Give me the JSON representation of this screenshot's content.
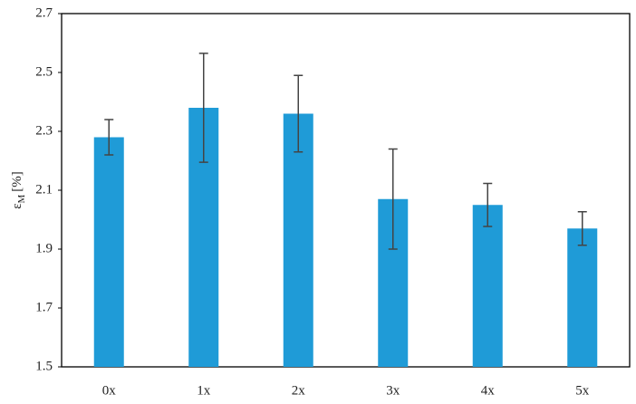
{
  "chart_data": {
    "type": "bar",
    "ylabel": "ε",
    "ylabel_sub": "M",
    "ylabel_unit": "[%]",
    "categories": [
      "0x",
      "1x",
      "2x",
      "3x",
      "4x",
      "5x"
    ],
    "values": [
      2.28,
      2.38,
      2.36,
      2.07,
      2.05,
      1.97
    ],
    "errors": [
      0.06,
      0.185,
      0.13,
      0.17,
      0.073,
      0.057
    ],
    "color": "#1f9bd7",
    "ylim": [
      1.5,
      2.7
    ],
    "yticks": [
      1.5,
      1.7,
      1.9,
      2.1,
      2.3,
      2.5,
      2.7
    ],
    "grid": false
  }
}
